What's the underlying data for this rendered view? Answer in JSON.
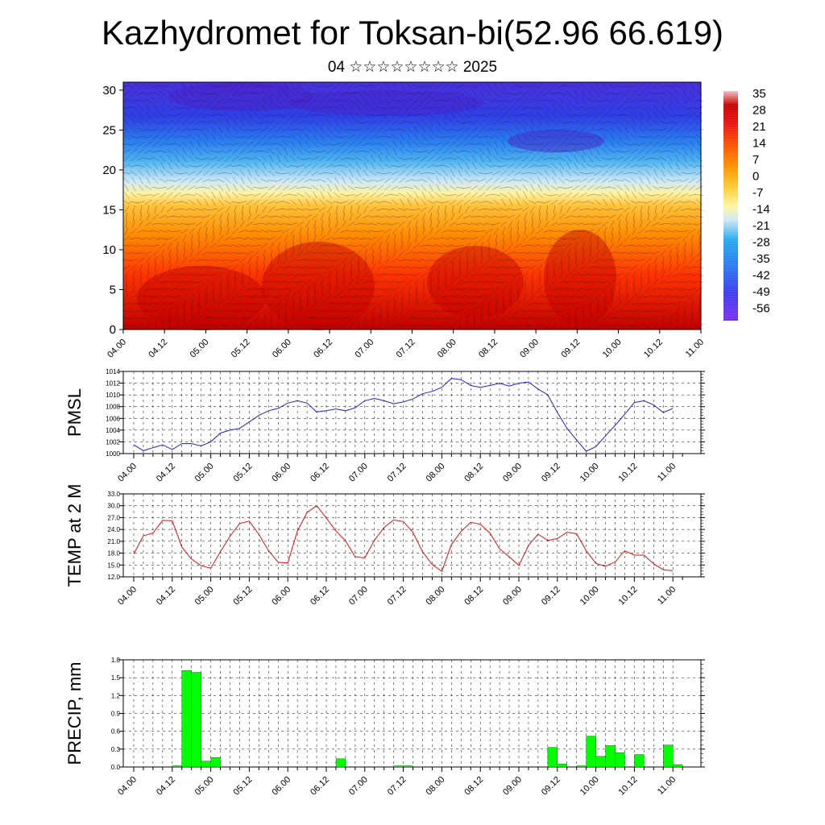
{
  "header": {
    "title": "Kazhydromet for Toksan-bi(52.96 66.619)",
    "subtitle": "04 ☆☆☆☆☆☆☆☆ 2025"
  },
  "colors": {
    "pmsl_line": "#1f1fe0",
    "temp_line": "#e01010",
    "precip_bar": "#00ff00",
    "colormap": [
      "#7b2ff0",
      "#3b3bf0",
      "#2a6ef0",
      "#25a8f0",
      "#9dd6f5",
      "#fff6a0",
      "#ffcc33",
      "#ff9900",
      "#ff5500",
      "#e81010",
      "#c80000",
      "#e0a0a0"
    ]
  },
  "time_ticks": [
    "04.00",
    "04.12",
    "05.00",
    "05.12",
    "06.00",
    "06.12",
    "07.00",
    "07.12",
    "08.00",
    "08.12",
    "09.00",
    "09.12",
    "10.00",
    "10.12",
    "11.00"
  ],
  "chart_data": [
    {
      "type": "heatmap",
      "description_label": "",
      "y_ticks": [
        0,
        5,
        10,
        15,
        20,
        25,
        30
      ],
      "ylim": [
        0,
        31
      ],
      "colorbar_ticks": [
        "35",
        "28",
        "21",
        "14",
        "7",
        "0",
        "-7",
        "-14",
        "-21",
        "-28",
        "-35",
        "-42",
        "-49",
        "-56"
      ],
      "bands": [
        {
          "y": [
            0,
            8
          ],
          "value": 14
        },
        {
          "y": [
            8,
            13
          ],
          "value": 7
        },
        {
          "y": [
            13,
            16
          ],
          "value": -7
        },
        {
          "y": [
            16,
            19
          ],
          "value": -21
        },
        {
          "y": [
            19,
            23
          ],
          "value": -35
        },
        {
          "y": [
            23,
            31
          ],
          "value": -56
        }
      ]
    },
    {
      "type": "line",
      "ylabel": "PMSL",
      "ylim": [
        1000,
        1014
      ],
      "y_ticks": [
        "1000",
        "1002",
        "1004",
        "1006",
        "1008",
        "1010",
        "1012",
        "1014"
      ],
      "x_step_hours": 3,
      "values": [
        1001.5,
        1000.5,
        1001,
        1001.5,
        1000.7,
        1001.7,
        1001.7,
        1001.3,
        1002,
        1003.5,
        1004,
        1004.3,
        1005.4,
        1006.5,
        1007.3,
        1007.7,
        1008.6,
        1009,
        1008.6,
        1007.1,
        1007.3,
        1007.6,
        1007.3,
        1007.8,
        1009,
        1009.4,
        1009,
        1008.5,
        1008.8,
        1009.3,
        1010.2,
        1010.6,
        1011.3,
        1012.8,
        1012.6,
        1011.6,
        1011.3,
        1011.6,
        1012,
        1011.5,
        1012,
        1012.2,
        1011,
        1010,
        1007,
        1004.3,
        1002.3,
        1000.4,
        1001.2,
        1003,
        1004.8,
        1006.7,
        1008.7,
        1009,
        1008.3,
        1007,
        1007.7
      ]
    },
    {
      "type": "line",
      "ylabel": "TEMP at 2 M",
      "ylim": [
        12,
        33
      ],
      "y_ticks": [
        "12.0",
        "15.0",
        "18.0",
        "21.0",
        "24.0",
        "27.0",
        "30.0",
        "33.0"
      ],
      "x_step_hours": 3,
      "values": [
        17.8,
        22.4,
        23.1,
        26.3,
        26.2,
        19.5,
        16.5,
        14.8,
        14.2,
        18.4,
        22.3,
        25.5,
        26.1,
        22.7,
        18.6,
        15.7,
        15.5,
        23.6,
        28.3,
        30,
        26.9,
        23.6,
        21.1,
        17.1,
        16.8,
        21.3,
        24.5,
        26.4,
        26,
        23.3,
        18.3,
        15.1,
        13.4,
        20.2,
        23.5,
        25.8,
        25.3,
        23.1,
        19.1,
        17.1,
        14.9,
        20,
        22.8,
        21.2,
        21.7,
        23.3,
        22.9,
        18.6,
        15.4,
        14.7,
        15.8,
        18.6,
        17.5,
        17.5,
        15.3,
        13.8,
        13.6
      ]
    },
    {
      "type": "bar",
      "ylabel": "PRECIP, mm",
      "ylim": [
        0,
        1.8
      ],
      "y_ticks": [
        "0.0",
        "0.3",
        "0.6",
        "0.9",
        "1.2",
        "1.5",
        "1.8"
      ],
      "x_step_hours": 3,
      "values": [
        0,
        0,
        0,
        0,
        0.02,
        1.62,
        1.59,
        0.1,
        0.16,
        0,
        0,
        0,
        0,
        0,
        0,
        0,
        0,
        0,
        0,
        0,
        0,
        0.14,
        0,
        0,
        0,
        0,
        0,
        0.02,
        0.02,
        0,
        0,
        0,
        0,
        0,
        0,
        0,
        0,
        0,
        0,
        0,
        0,
        0,
        0,
        0.33,
        0.05,
        0,
        0.02,
        0.52,
        0.18,
        0.36,
        0.24,
        0,
        0.21,
        0,
        0,
        0.37,
        0.04
      ]
    }
  ]
}
